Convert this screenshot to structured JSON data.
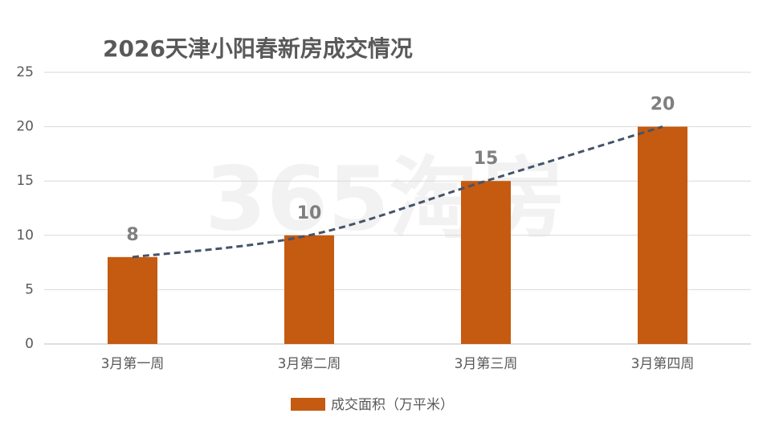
{
  "chart_data": {
    "type": "bar",
    "title": "2026天津小阳春新房成交情况",
    "watermark": "365淘房",
    "categories": [
      "3月第一周",
      "3月第二周",
      "3月第三周",
      "3月第四周"
    ],
    "series": [
      {
        "name": "成交面积（万平米）",
        "color": "#c55a11",
        "values": [
          8,
          10,
          15,
          20
        ]
      }
    ],
    "trendline": {
      "color": "#44546a",
      "style": "dashed"
    },
    "ylim": [
      0,
      25
    ],
    "yticks": [
      0,
      5,
      10,
      15,
      20,
      25
    ],
    "grid": true,
    "legend": "bottom"
  }
}
